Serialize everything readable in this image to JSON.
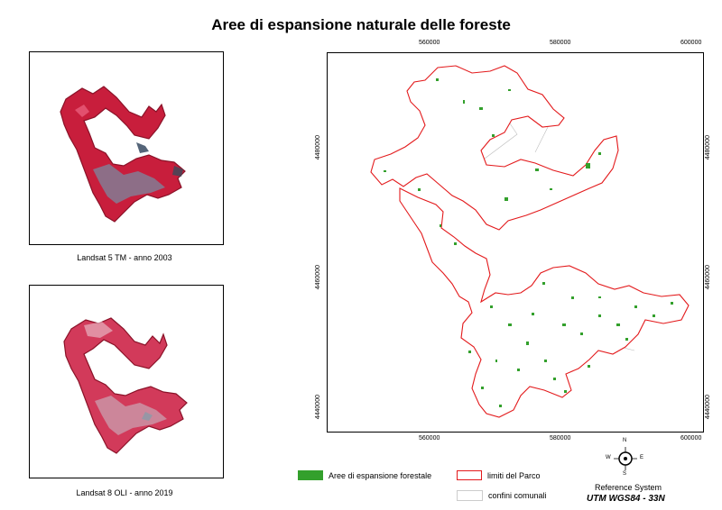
{
  "title": "Aree di espansione naturale delle foreste",
  "thumbnails": [
    {
      "caption": "Landsat 5 TM - anno 2003"
    },
    {
      "caption": "Landsat 8 OLI - anno 2019"
    }
  ],
  "map": {
    "x_ticks": [
      "560000",
      "580000",
      "600000"
    ],
    "y_ticks": [
      "4480000",
      "4460000",
      "4440000"
    ]
  },
  "legend": {
    "forest": {
      "label": "Aree di espansione forestale",
      "color": "#33a02c"
    },
    "park": {
      "label": "limiti del Parco",
      "color": "#e31a1c"
    },
    "municipal": {
      "label": "confini comunali",
      "color": "#cccccc"
    }
  },
  "compass": {
    "n": "N",
    "s": "S",
    "e": "E",
    "w": "W"
  },
  "reference": {
    "label": "Reference System",
    "value": "UTM WGS84 - 33N"
  }
}
